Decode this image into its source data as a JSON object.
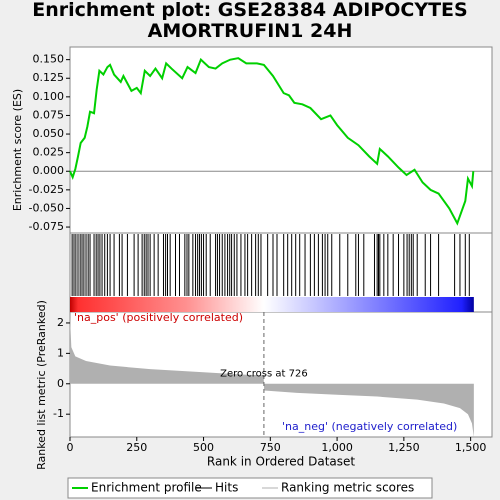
{
  "chart_data": [
    {
      "type": "line",
      "title": "Enrichment plot: GSE28384 ADIPOCYTES AMORTRUFIN1 24H",
      "ylabel": "Enrichment score (ES)",
      "x": [
        0,
        10,
        20,
        30,
        40,
        55,
        65,
        75,
        90,
        100,
        110,
        125,
        140,
        150,
        165,
        190,
        200,
        230,
        250,
        265,
        280,
        300,
        320,
        345,
        360,
        380,
        420,
        440,
        470,
        490,
        520,
        545,
        570,
        600,
        630,
        660,
        700,
        726,
        760,
        800,
        820,
        840,
        870,
        900,
        940,
        975,
        1000,
        1040,
        1080,
        1120,
        1150,
        1160,
        1190,
        1230,
        1260,
        1290,
        1320,
        1350,
        1380,
        1420,
        1450,
        1465,
        1480,
        1490,
        1505,
        1510
      ],
      "series": [
        {
          "name": "Enrichment profile",
          "color": "#00d000",
          "values": [
            0,
            -0.008,
            0.003,
            0.02,
            0.038,
            0.045,
            0.06,
            0.08,
            0.078,
            0.11,
            0.135,
            0.13,
            0.14,
            0.143,
            0.13,
            0.12,
            0.128,
            0.108,
            0.112,
            0.105,
            0.135,
            0.128,
            0.138,
            0.125,
            0.145,
            0.138,
            0.125,
            0.14,
            0.132,
            0.15,
            0.14,
            0.138,
            0.145,
            0.15,
            0.152,
            0.145,
            0.145,
            0.143,
            0.128,
            0.105,
            0.102,
            0.092,
            0.09,
            0.085,
            0.07,
            0.075,
            0.062,
            0.045,
            0.035,
            0.02,
            0.01,
            0.03,
            0.02,
            0.005,
            -0.005,
            0.002,
            -0.015,
            -0.025,
            -0.03,
            -0.05,
            -0.07,
            -0.055,
            -0.04,
            -0.01,
            -0.02,
            0
          ]
        }
      ],
      "xlim": [
        0,
        1580
      ],
      "ylim": [
        -0.083,
        0.167
      ],
      "yticks": [
        {
          "value": 0.15,
          "label": "0.150"
        },
        0.125,
        {
          "value": 0.1,
          "label": "0.100"
        },
        0.075,
        {
          "value": 0.05,
          "label": "0.050"
        },
        0.025,
        {
          "value": 0,
          "label": "0.000"
        },
        -0.025,
        {
          "value": -0.05,
          "label": "-0.050"
        },
        -0.075
      ]
    },
    {
      "type": "hits",
      "name": "Hits",
      "color": "#000000",
      "xlim": [
        0,
        1580
      ],
      "x": [
        8,
        15,
        22,
        30,
        38,
        45,
        52,
        60,
        68,
        75,
        90,
        98,
        105,
        112,
        120,
        130,
        140,
        150,
        165,
        185,
        195,
        215,
        240,
        255,
        270,
        278,
        285,
        292,
        300,
        315,
        330,
        350,
        358,
        365,
        375,
        395,
        410,
        430,
        438,
        445,
        460,
        470,
        478,
        485,
        492,
        500,
        510,
        525,
        545,
        552,
        560,
        570,
        580,
        590,
        598,
        605,
        615,
        625,
        640,
        655,
        665,
        680,
        695,
        705,
        715,
        740,
        760,
        775,
        800,
        815,
        830,
        845,
        860,
        880,
        900,
        915,
        930,
        945,
        955,
        965,
        980,
        1010,
        1040,
        1070,
        1080,
        1100,
        1140,
        1150,
        1155,
        1160,
        1175,
        1190,
        1210,
        1230,
        1250,
        1262,
        1270,
        1278,
        1285,
        1300,
        1330,
        1350,
        1380,
        1440,
        1460,
        1480,
        1495
      ]
    },
    {
      "type": "area",
      "name": "Ranking metric scores",
      "color": "#b0b0b0",
      "ylabel": "Ranked list metric (PreRanked)",
      "xlabel": "Rank in Ordered Dataset",
      "x": [
        0,
        5,
        20,
        60,
        150,
        300,
        500,
        650,
        725,
        727,
        850,
        1000,
        1150,
        1300,
        1400,
        1460,
        1490,
        1505,
        1512
      ],
      "values": [
        2.2,
        1.2,
        0.9,
        0.75,
        0.6,
        0.48,
        0.38,
        0.3,
        0.28,
        -0.22,
        -0.3,
        -0.36,
        -0.42,
        -0.52,
        -0.65,
        -0.8,
        -1.0,
        -1.3,
        -1.75
      ],
      "xlim": [
        0,
        1580
      ],
      "ylim": [
        -1.75,
        2.36
      ],
      "xticks": [
        0,
        250,
        500,
        750,
        {
          "value": 1000,
          "label": "1,000"
        },
        {
          "value": 1250,
          "label": "1,250"
        },
        {
          "value": 1500,
          "label": "1,500"
        }
      ],
      "yticks": [
        2,
        1,
        0,
        -1
      ],
      "zero_cross": {
        "value": 726,
        "label": "Zero cross at 726"
      },
      "pos_label": "'na_pos' (positively correlated)",
      "neg_label": "'na_neg' (negatively correlated)"
    }
  ]
}
